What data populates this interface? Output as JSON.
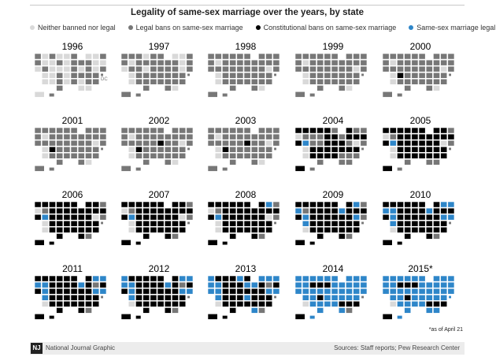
{
  "title": "Legality of same-sex marriage over the years, by state",
  "legend": [
    {
      "label": "Neither banned nor legal",
      "color": "#d9d9d9"
    },
    {
      "label": "Legal bans on same-sex marriage",
      "color": "#777777"
    },
    {
      "label": "Constitutional bans on same-sex marriage",
      "color": "#000000"
    },
    {
      "label": "Same-sex marriage legal",
      "color": "#2e86c9"
    }
  ],
  "dc_label": "DC",
  "footnote": "*as of April 21",
  "footer": {
    "logo": "NJ",
    "credit": "National Journal Graphic",
    "sources": "Sources: Staff reports; Pew Research Center"
  },
  "panels": [
    {
      "year": "1996",
      "cells": "GLGLLGLLGGLLGLGGGLLLGLLLGLGLGLLGLGGGGLLGLGLGGGLLGLG"
    },
    {
      "year": "1997",
      "cells": "GGGLGGLLGGLGGGGGGLGLGGLGGGGLGLGGGGGGGLGGGGGGGGGLGGG"
    },
    {
      "year": "1998",
      "cells": "GGGGGGGGGGLGGGGGGGGGGGGGGGGLGLGGGGGGGLGGGGGGGGGLGGG"
    },
    {
      "year": "1999",
      "cells": "GGGGGGGGGGLGGGGGGGGGGGGGGGGLGLGGGGGGGLGGGGGGGGGLGGG"
    },
    {
      "year": "2000",
      "cells": "GGGGGGGGGGLGGGGGGGGGGGGGGGGLGLKGGGGGGLGGGGGGGGGLGGG"
    },
    {
      "year": "2001",
      "cells": "GGGGGGGGGGLGGGGGGGGGGGGGGGGLGLKGGGGGGLGGGGGGGGGLGGG"
    },
    {
      "year": "2002",
      "cells": "GGGGGGGGGGLGGGGGGGGGGGGGKGGLGLKGGGGGGLGGGGGGGGGLGGG"
    },
    {
      "year": "2003",
      "cells": "GGGGGGGGGGLGGGGGGGGGGGGGKGGLGLKGGGGGGLGGGGGGGGGLGGG"
    },
    {
      "year": "2004",
      "cells": "KKKKKGKGGLGGGKKGKKKKBGGKKKGLGLKKKKKKKLKKKKGGGGGGGKG"
    },
    {
      "year": "2005",
      "cells": "KKKKKKKKGLGKKKKKKKKKBKKKKKKLGLKKKKKKKLKKKKKKKGGGGKG"
    },
    {
      "year": "2006",
      "cells": "KKKKKKKKGLGKKKKKKKKKBKKKKKKLGLKKKKKKKLKKKKKKKKKGGKK"
    },
    {
      "year": "2007",
      "cells": "KKKKKKKKGLGKKKKKKKKKBKKKKKKLGLKKKKKKKLKKKKKKKKKGGKK"
    },
    {
      "year": "2008",
      "cells": "KKKKKKKBGLGKKKKKKKKKBKKKKKKLGLKKKKKKKLKKKKKKKKKGGKK"
    },
    {
      "year": "2009",
      "cells": "KKKKKKKBGBGKKKKBKKKKBKKKKKKBGBKKKKKKKLKKKKKKKKKGGKK"
    },
    {
      "year": "2010",
      "cells": "KKKKKKKBBBBKKKKBKKKKBKKKKKKBBBKKKKKKKLKKKKKKKKKGGKK"
    },
    {
      "year": "2011",
      "cells": "KKKKKKKBBBBKKKKBKGKKBKKKKKKBBBKKKKKKKLKKKKKKKKKGGKK"
    },
    {
      "year": "2012",
      "cells": "BKKKKKKBBBBKKKKBKGKKBKKKKKKBBBKKKKKKKLKKKKKKKKKGGKK"
    },
    {
      "year": "2013",
      "cells": "BKKKBKBBBBBKKKBBKGKBBKKKKKKBBBKKKBKKKLKKKKKKKKBGGKK"
    },
    {
      "year": "2014",
      "cells": "BBBBBBBBBBBKKKBBBBBBBBBBBBBBBBBKBBBBBLBBBBKKKBBGGKB"
    },
    {
      "year": "2015*",
      "cells": "BBBBBBBBBBBKKKBBBBBBBBBBBBBBBBBKBBBBBLBBBBKKKBBBBKB"
    }
  ]
}
